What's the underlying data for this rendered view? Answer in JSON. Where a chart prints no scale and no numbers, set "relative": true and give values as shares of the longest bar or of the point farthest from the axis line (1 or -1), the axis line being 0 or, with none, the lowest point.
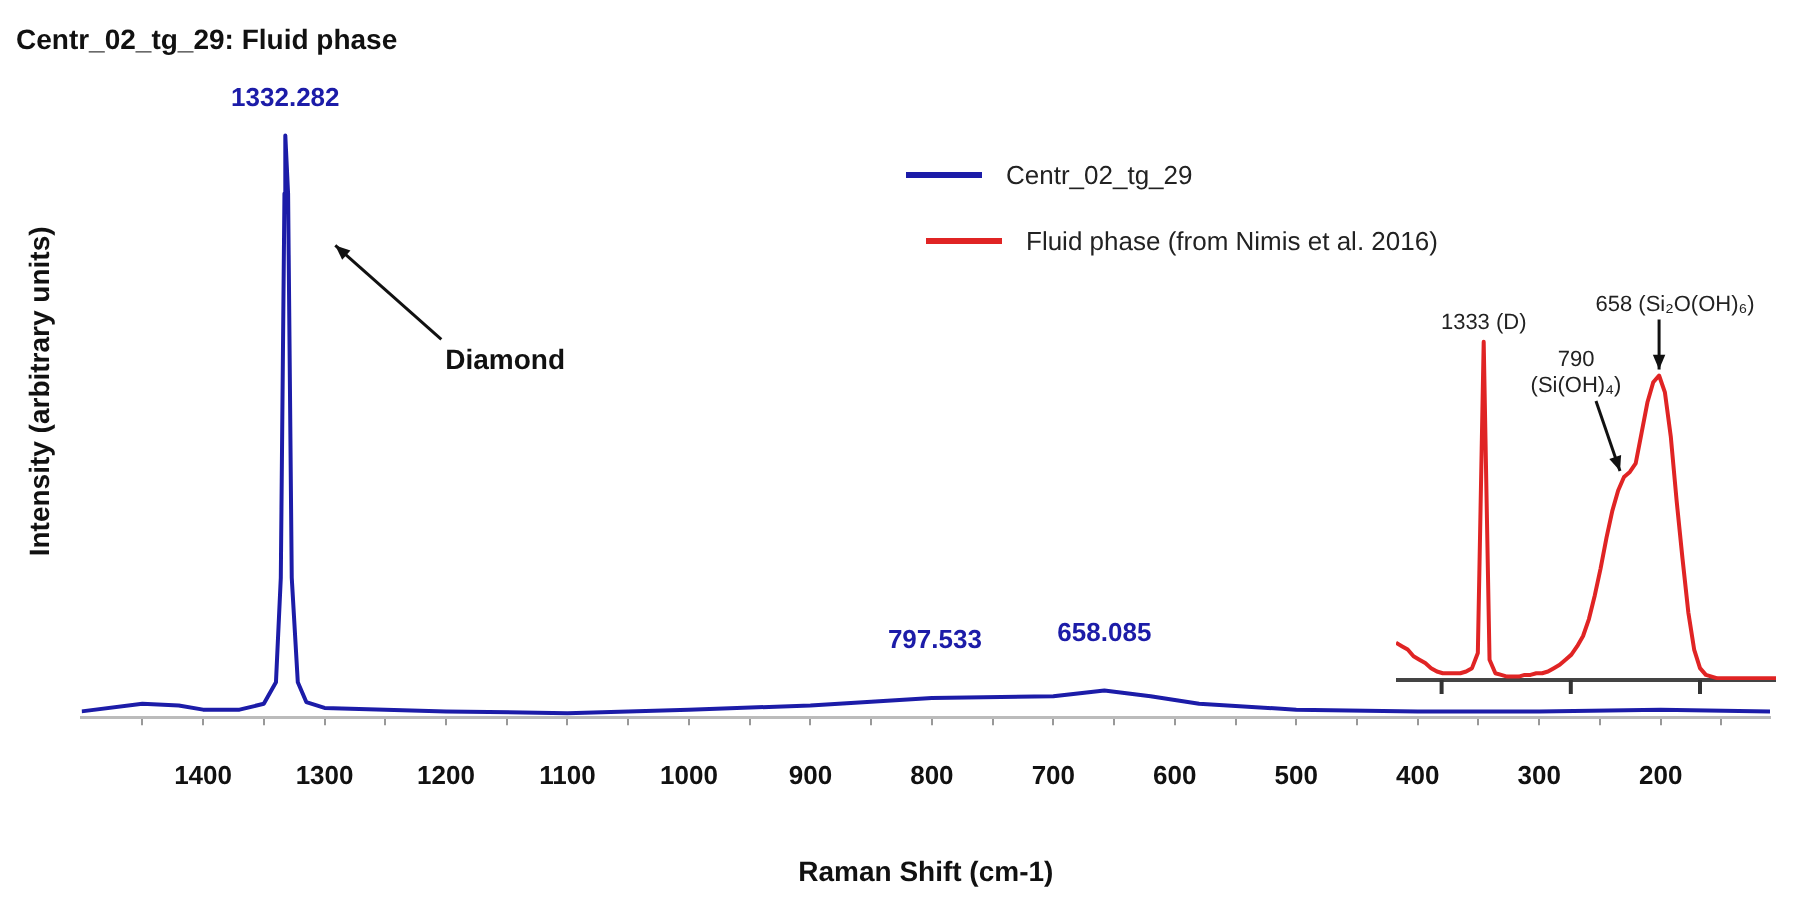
{
  "chart_data": [
    {
      "type": "line",
      "title": "Centr_02_tg_29: Fluid phase",
      "xlabel": "Raman Shift (cm-1)",
      "ylabel": "Intensity (arbitrary units)",
      "relative": true,
      "legend": "top right",
      "xlim": [
        1500,
        110
      ],
      "xticks": [
        {
          "value": 1450,
          "label": null
        },
        1400,
        {
          "value": 1350,
          "label": null
        },
        1300,
        {
          "value": 1250,
          "label": null
        },
        1200,
        {
          "value": 1150,
          "label": null
        },
        1100,
        {
          "value": 1050,
          "label": null
        },
        1000,
        {
          "value": 950,
          "label": null
        },
        900,
        {
          "value": 850,
          "label": null
        },
        800,
        {
          "value": 750,
          "label": null
        },
        700,
        {
          "value": 650,
          "label": null
        },
        600,
        {
          "value": 550,
          "label": null
        },
        500,
        {
          "value": 450,
          "label": null
        },
        400,
        {
          "value": 350,
          "label": null
        },
        300,
        {
          "value": 250,
          "label": null
        },
        200,
        {
          "value": 150,
          "label": null
        }
      ],
      "x": [
        1500,
        1450,
        1420,
        1400,
        1370,
        1350,
        1340,
        1336,
        1333,
        1332.3,
        1330,
        1327,
        1322,
        1315,
        1300,
        1200,
        1100,
        1000,
        900,
        800,
        700,
        658,
        620,
        580,
        500,
        400,
        300,
        200,
        110
      ],
      "series": [
        {
          "name": "Centr_02_tg_29",
          "color": "#1c1ca8",
          "values": [
            0.01,
            0.023,
            0.02,
            0.013,
            0.013,
            0.023,
            0.06,
            0.24,
            0.9,
            1,
            0.9,
            0.24,
            0.06,
            0.026,
            0.016,
            0.01,
            0.007,
            0.013,
            0.02,
            0.033,
            0.036,
            0.046,
            0.036,
            0.023,
            0.013,
            0.01,
            0.01,
            0.013,
            0.01
          ]
        }
      ],
      "annotations": [
        {
          "text": "1332.282",
          "x": 1332.3,
          "y": 1
        },
        {
          "text": "797.533",
          "x": 797.5,
          "y": 0.033
        },
        {
          "text": "658.085",
          "x": 658,
          "y": 0.046
        },
        "Diamond"
      ]
    },
    {
      "type": "line",
      "relative": true,
      "legend": "top",
      "categories": [
        null,
        null,
        null,
        null,
        null,
        null,
        null,
        null,
        null,
        null,
        null,
        null,
        null,
        null,
        null,
        null,
        null,
        null,
        null,
        null,
        null,
        null,
        null,
        null,
        null,
        null,
        null,
        null,
        null,
        null,
        null,
        null,
        null,
        null,
        null,
        null,
        null,
        null,
        null,
        null,
        null,
        null,
        null,
        null,
        null,
        null,
        null,
        null,
        null,
        null,
        null,
        null,
        null,
        null,
        null,
        null,
        null,
        null,
        null,
        null,
        null,
        null,
        null,
        null,
        null,
        null
      ],
      "series": [
        {
          "name": "Fluid phase (from Nimis et al. 2016)",
          "color": "#e02424",
          "values": [
            0.11,
            0.1,
            0.09,
            0.07,
            0.06,
            0.05,
            0.035,
            0.025,
            0.02,
            0.02,
            0.02,
            0.02,
            0.025,
            0.035,
            0.08,
            1,
            0.06,
            0.02,
            0.015,
            0.01,
            0.01,
            0.01,
            0.015,
            0.015,
            0.02,
            0.02,
            0.025,
            0.035,
            0.045,
            0.06,
            0.075,
            0.1,
            0.13,
            0.18,
            0.25,
            0.33,
            0.42,
            0.5,
            0.56,
            0.6,
            0.615,
            0.64,
            0.73,
            0.82,
            0.88,
            0.9,
            0.85,
            0.72,
            0.53,
            0.36,
            0.2,
            0.09,
            0.035,
            0.015,
            0.01,
            0.005,
            0.005,
            0.005,
            0.005,
            0.005,
            0.005,
            0.005,
            0.005,
            0.005,
            0.005,
            0.005
          ]
        }
      ],
      "annotations": [
        {
          "text": "1333 (D)",
          "y": 1
        },
        "790\n(Si(OH)₄)",
        "658 (Si₂O(OH)₆)"
      ]
    }
  ]
}
